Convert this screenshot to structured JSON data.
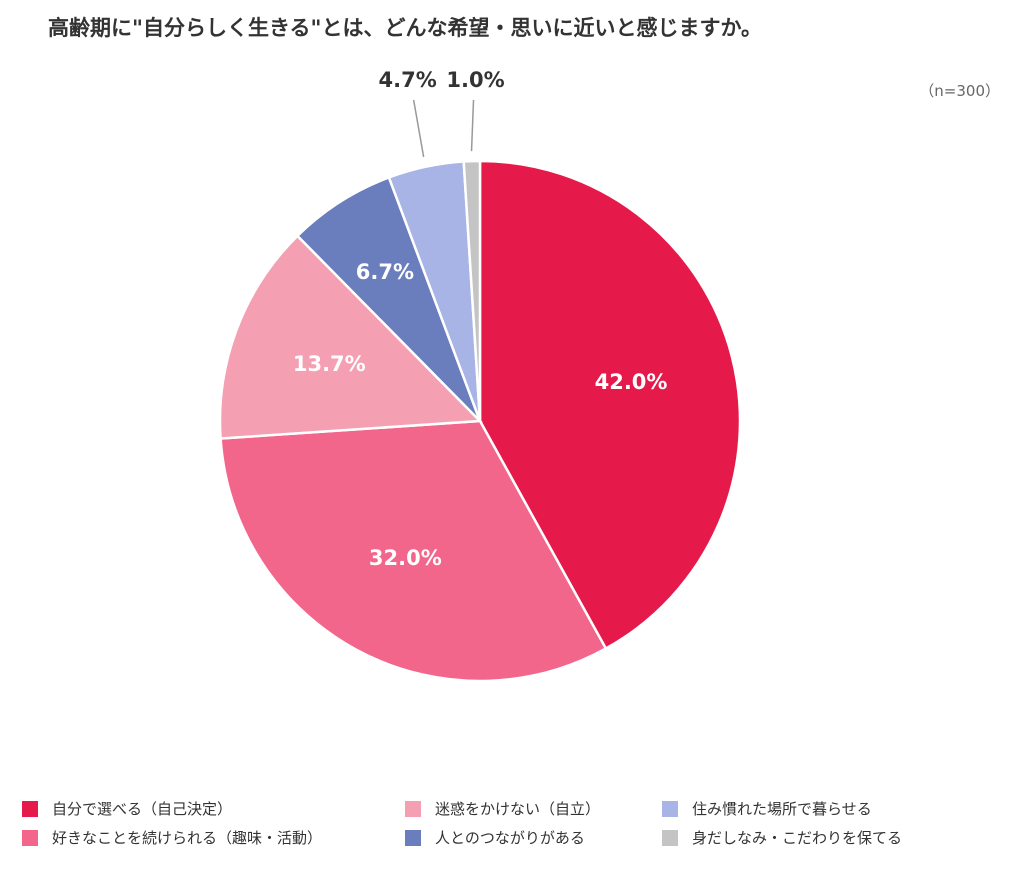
{
  "chart_data": {
    "type": "pie",
    "title": "高齢期に\"自分らしく生きる\"とは、どんな希望・思いに近いと感じますか。",
    "note": "（n=300）",
    "categories": [
      "自分で選べる（自己決定）",
      "好きなことを続けられる（趣味・活動）",
      "迷惑をかけない（自立）",
      "人とのつながりがある",
      "住み慣れた場所で暮らせる",
      "身だしなみ・こだわりを保てる"
    ],
    "values": [
      42.0,
      32.0,
      13.7,
      6.7,
      4.7,
      1.0
    ],
    "labels": [
      "42.0%",
      "32.0%",
      "13.7%",
      "6.7%",
      "4.7%",
      "1.0%"
    ],
    "colors": [
      "#E5194A",
      "#F2668B",
      "#F4A0B2",
      "#6A7DBD",
      "#A8B3E6",
      "#C4C4C4"
    ],
    "legend_position": "bottom",
    "start": "top, clockwise"
  }
}
